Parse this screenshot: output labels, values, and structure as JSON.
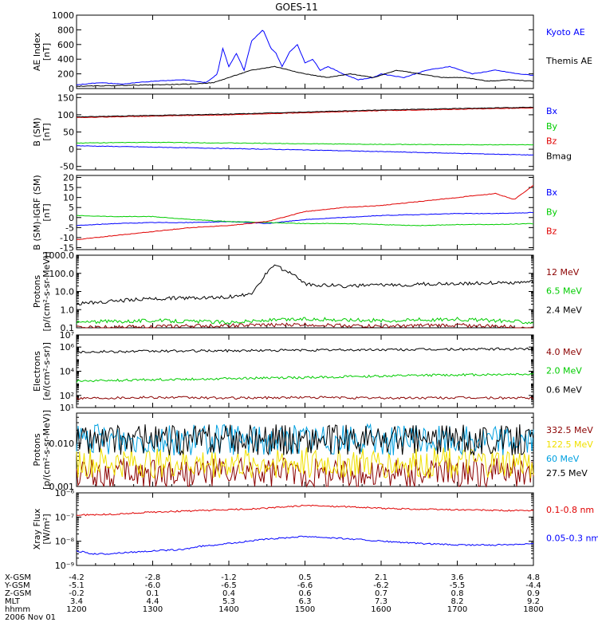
{
  "title": "GOES-11",
  "colors": {
    "black": "#000000",
    "blue": "#0000ff",
    "green": "#00cc00",
    "red": "#e00000",
    "darkred": "#8b0000",
    "yellow": "#f0e000",
    "cyan": "#00a0e0"
  },
  "chart_data": [
    {
      "type": "line",
      "ylabel": [
        "AE Index",
        "[nT]"
      ],
      "yscale": "linear",
      "ylim": [
        0,
        1000
      ],
      "yticks": [
        0,
        200,
        400,
        600,
        800,
        1000
      ],
      "ytick_labels": [
        "0",
        "200",
        "400",
        "600",
        "800",
        "1000"
      ],
      "series": [
        {
          "name": "Kyoto AE",
          "color": "#0000ff",
          "x": [
            12.0,
            12.3,
            12.6,
            13.0,
            13.4,
            13.7,
            13.85,
            13.92,
            14.0,
            14.1,
            14.2,
            14.3,
            14.45,
            14.55,
            14.62,
            14.7,
            14.8,
            14.9,
            15.0,
            15.1,
            15.2,
            15.3,
            15.5,
            15.7,
            15.9,
            16.0,
            16.3,
            16.6,
            16.9,
            17.2,
            17.5,
            17.8,
            18.0
          ],
          "y": [
            50,
            80,
            60,
            100,
            120,
            80,
            200,
            550,
            300,
            480,
            250,
            650,
            800,
            550,
            480,
            300,
            500,
            600,
            350,
            400,
            250,
            300,
            200,
            120,
            150,
            200,
            150,
            250,
            300,
            200,
            250,
            200,
            180
          ]
        },
        {
          "name": "Themis AE",
          "color": "#000000",
          "x": [
            12.0,
            12.5,
            13.0,
            13.5,
            13.8,
            14.0,
            14.3,
            14.6,
            14.8,
            15.0,
            15.3,
            15.6,
            15.9,
            16.2,
            16.5,
            16.8,
            17.1,
            17.4,
            17.7,
            18.0
          ],
          "y": [
            30,
            40,
            50,
            60,
            80,
            150,
            250,
            300,
            250,
            200,
            150,
            200,
            150,
            250,
            200,
            150,
            150,
            100,
            120,
            100
          ]
        }
      ]
    },
    {
      "type": "line",
      "ylabel": [
        "B (SM)",
        "[nT]"
      ],
      "yscale": "linear",
      "ylim": [
        -60,
        160
      ],
      "yticks": [
        -50,
        0,
        50,
        100,
        150
      ],
      "ytick_labels": [
        "-50",
        "0",
        "50",
        "100",
        "150"
      ],
      "series": [
        {
          "name": "Bx",
          "color": "#0000ff",
          "x": [
            12,
            13,
            14,
            15,
            16,
            17,
            18
          ],
          "y": [
            10,
            6,
            2,
            -2,
            -7,
            -12,
            -17
          ]
        },
        {
          "name": "By",
          "color": "#00cc00",
          "x": [
            12,
            13,
            14,
            15,
            16,
            17,
            18
          ],
          "y": [
            18,
            20,
            18,
            16,
            14,
            13,
            13
          ]
        },
        {
          "name": "Bz",
          "color": "#e00000",
          "x": [
            12,
            13,
            14,
            15,
            16,
            17,
            18
          ],
          "y": [
            92,
            96,
            100,
            106,
            112,
            116,
            120
          ]
        },
        {
          "name": "Bmag",
          "color": "#000000",
          "x": [
            12,
            13,
            14,
            15,
            16,
            17,
            18
          ],
          "y": [
            94,
            98,
            102,
            108,
            114,
            118,
            122
          ]
        }
      ]
    },
    {
      "type": "line",
      "ylabel": [
        "B (SM)-IGRF (SM)",
        "[nT]"
      ],
      "yscale": "linear",
      "ylim": [
        -16,
        21
      ],
      "yticks": [
        -15,
        -10,
        -5,
        0,
        5,
        10,
        15,
        20
      ],
      "ytick_labels": [
        "-15",
        "-10",
        "-5",
        "0",
        "5",
        "10",
        "15",
        "20"
      ],
      "series": [
        {
          "name": "Bx",
          "color": "#0000ff",
          "x": [
            12,
            12.5,
            13,
            13.5,
            14,
            14.5,
            15,
            15.5,
            16,
            16.5,
            17,
            17.5,
            18
          ],
          "y": [
            -4,
            -3,
            -2.5,
            -2.5,
            -2,
            -3,
            -1,
            0,
            1,
            1.5,
            2,
            2,
            2.5
          ]
        },
        {
          "name": "By",
          "color": "#00cc00",
          "x": [
            12,
            12.5,
            13,
            13.5,
            14,
            14.5,
            15,
            15.5,
            16,
            16.5,
            17,
            17.5,
            18
          ],
          "y": [
            1,
            0.5,
            0.5,
            -1,
            -2,
            -2.5,
            -3,
            -3,
            -3.5,
            -4,
            -3.5,
            -3.5,
            -3
          ]
        },
        {
          "name": "Bz",
          "color": "#e00000",
          "x": [
            12,
            12.5,
            13,
            13.5,
            14,
            14.5,
            14.7,
            15,
            15.5,
            16,
            16.5,
            17,
            17.5,
            17.75,
            18
          ],
          "y": [
            -11,
            -9,
            -7,
            -5,
            -4,
            -2,
            0,
            3,
            5,
            6,
            8,
            10,
            12,
            9,
            16
          ]
        }
      ]
    },
    {
      "type": "line",
      "ylabel": [
        "Protons",
        "[p/(cm²-s-sr-MeV)]"
      ],
      "yscale": "log",
      "ylim": [
        0.1,
        1000
      ],
      "yticks": [
        0.1,
        1,
        10,
        100,
        1000
      ],
      "ytick_labels": [
        "0.1",
        "1.0",
        "10.0",
        "100.0",
        "1000.0"
      ],
      "series": [
        {
          "name": "12 MeV",
          "color": "#8b0000",
          "x": [
            12,
            15,
            16,
            17,
            18
          ],
          "y": [
            0.1,
            0.15,
            0.12,
            0.14,
            0.1
          ]
        },
        {
          "name": "6.5 MeV",
          "color": "#00cc00",
          "x": [
            12,
            13,
            14,
            15,
            16,
            17,
            18
          ],
          "y": [
            0.2,
            0.25,
            0.2,
            0.3,
            0.25,
            0.3,
            0.2
          ]
        },
        {
          "name": "2.4 MeV",
          "color": "#000000",
          "x": [
            12,
            12.5,
            13,
            13.5,
            14,
            14.3,
            14.45,
            14.6,
            14.8,
            15,
            15.5,
            16,
            16.5,
            17,
            17.5,
            18
          ],
          "y": [
            2,
            3,
            4,
            4.5,
            5,
            7,
            40,
            250,
            100,
            25,
            20,
            22,
            25,
            28,
            30,
            32
          ]
        }
      ]
    },
    {
      "type": "line",
      "ylabel": [
        "Electrons",
        "[e/(cm²-s-sr)]"
      ],
      "yscale": "log",
      "ylim": [
        10,
        10000000
      ],
      "yticks": [
        10,
        100,
        10000,
        1000000,
        10000000
      ],
      "ytick_labels": [
        "10¹",
        "10²",
        "10⁴",
        "10⁶",
        "10⁷"
      ],
      "series": [
        {
          "name": "4.0 MeV",
          "color": "#8b0000",
          "x": [
            12,
            13,
            14,
            15,
            16,
            17,
            18
          ],
          "y": [
            60,
            70,
            60,
            70,
            60,
            65,
            60
          ]
        },
        {
          "name": "2.0 MeV",
          "color": "#00cc00",
          "x": [
            12,
            13,
            14,
            15,
            16,
            17,
            18
          ],
          "y": [
            1500,
            2000,
            2500,
            3000,
            4000,
            5000,
            6000
          ]
        },
        {
          "name": "0.6 MeV",
          "color": "#000000",
          "x": [
            12,
            13,
            14,
            15,
            16,
            17,
            18
          ],
          "y": [
            400000,
            450000,
            500000,
            550000,
            600000,
            650000,
            700000
          ]
        }
      ]
    },
    {
      "type": "line",
      "ylabel": [
        "Protons",
        "[p/(cm²-s-sr-MeV)]"
      ],
      "yscale": "log",
      "ylim": [
        0.001,
        0.05
      ],
      "yticks": [
        0.001,
        0.01
      ],
      "ytick_labels": [
        "0.001",
        "0.010"
      ],
      "series": [
        {
          "name": "332.5 MeV",
          "color": "#8b0000",
          "x": [
            12,
            18
          ],
          "y": [
            0.002,
            0.002
          ]
        },
        {
          "name": "122.5 MeV",
          "color": "#f0e000",
          "x": [
            12,
            18
          ],
          "y": [
            0.0035,
            0.0035
          ]
        },
        {
          "name": "60 MeV",
          "color": "#00a0e0",
          "x": [
            12,
            18
          ],
          "y": [
            0.012,
            0.012
          ]
        },
        {
          "name": "27.5 MeV",
          "color": "#000000",
          "x": [
            12,
            18
          ],
          "y": [
            0.012,
            0.012
          ]
        }
      ]
    },
    {
      "type": "line",
      "ylabel": [
        "Xray Flux",
        "[W/m²]"
      ],
      "yscale": "log",
      "ylim": [
        1e-09,
        1e-06
      ],
      "yticks": [
        1e-09,
        1e-08,
        1e-07,
        1e-06
      ],
      "ytick_labels": [
        "10⁻⁹",
        "10⁻⁸",
        "10⁻⁷",
        "10⁻⁶"
      ],
      "series": [
        {
          "name": "0.1-0.8 nm",
          "color": "#e00000",
          "x": [
            12,
            12.5,
            13,
            13.5,
            14,
            14.5,
            15,
            15.5,
            16,
            16.5,
            17,
            17.5,
            18
          ],
          "y": [
            1.2e-07,
            1.3e-07,
            1.6e-07,
            1.8e-07,
            2e-07,
            2.3e-07,
            3e-07,
            2.7e-07,
            2.3e-07,
            2.1e-07,
            2e-07,
            1.9e-07,
            1.8e-07
          ]
        },
        {
          "name": "0.05-0.3 nm",
          "color": "#0000ff",
          "x": [
            12,
            12.2,
            12.4,
            13,
            13.4,
            13.6,
            14,
            14.5,
            15,
            15.5,
            16,
            16.5,
            17,
            17.5,
            18
          ],
          "y": [
            4e-09,
            3e-09,
            3e-09,
            4e-09,
            4.5e-09,
            6e-09,
            8e-09,
            1.2e-08,
            1.6e-08,
            1.3e-08,
            1e-08,
            8e-09,
            7e-09,
            7e-09,
            8e-09
          ]
        }
      ]
    }
  ],
  "x_axis": {
    "xlim": [
      12,
      18
    ],
    "row_labels": [
      "X-GSM",
      "Y-GSM",
      "Z-GSM",
      "MLT",
      "hhmm"
    ],
    "date_label": "2006 Nov 01",
    "ticks": [
      {
        "x": 12,
        "values": [
          "-4.2",
          "-5.1",
          "-0.2",
          "3.4",
          "1200"
        ]
      },
      {
        "x": 13,
        "values": [
          "-2.8",
          "-6.0",
          "0.1",
          "4.4",
          "1300"
        ]
      },
      {
        "x": 14,
        "values": [
          "-1.2",
          "-6.5",
          "0.4",
          "5.3",
          "1400"
        ]
      },
      {
        "x": 15,
        "values": [
          "0.5",
          "-6.6",
          "0.6",
          "6.3",
          "1500"
        ]
      },
      {
        "x": 16,
        "values": [
          "2.1",
          "-6.2",
          "0.7",
          "7.3",
          "1600"
        ]
      },
      {
        "x": 17,
        "values": [
          "3.6",
          "-5.5",
          "0.8",
          "8.2",
          "1700"
        ]
      },
      {
        "x": 18,
        "values": [
          "4.8",
          "-4.4",
          "0.9",
          "9.2",
          "1800"
        ]
      }
    ]
  }
}
